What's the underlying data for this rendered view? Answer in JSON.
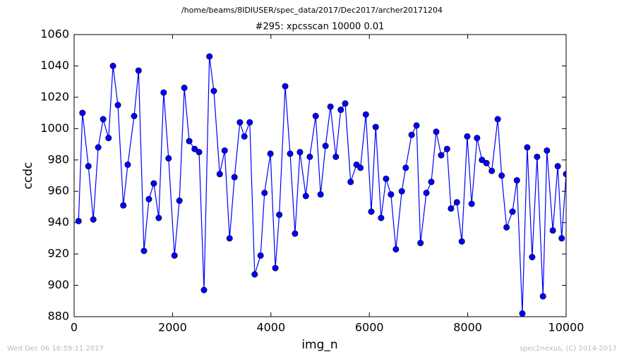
{
  "chart_data": {
    "type": "line",
    "suptitle": "/home/beams/8IDIUSER/spec_data/2017/Dec2017/archer20171204",
    "title": "#295: xpcsscan 10000 0.01",
    "xlabel": "img_n",
    "ylabel": "ccdc",
    "annotations": [
      "Wed Dec 06 16:59:11 2017",
      "spec2nexus, (C) 2014-2017"
    ],
    "x": [
      90,
      170,
      290,
      390,
      490,
      590,
      700,
      790,
      890,
      1000,
      1090,
      1220,
      1310,
      1420,
      1520,
      1620,
      1720,
      1820,
      1920,
      2040,
      2140,
      2240,
      2340,
      2450,
      2540,
      2640,
      2750,
      2840,
      2960,
      3060,
      3160,
      3260,
      3370,
      3460,
      3570,
      3670,
      3790,
      3870,
      3990,
      4090,
      4170,
      4290,
      4390,
      4490,
      4590,
      4710,
      4790,
      4910,
      5010,
      5110,
      5210,
      5320,
      5420,
      5510,
      5620,
      5740,
      5820,
      5930,
      6040,
      6130,
      6240,
      6340,
      6440,
      6540,
      6660,
      6740,
      6860,
      6960,
      7040,
      7160,
      7260,
      7360,
      7460,
      7580,
      7660,
      7780,
      7880,
      7990,
      8080,
      8190,
      8290,
      8380,
      8490,
      8610,
      8690,
      8790,
      8910,
      9000,
      9110,
      9210,
      9310,
      9410,
      9530,
      9610,
      9730,
      9830,
      9910,
      10000
    ],
    "series": [
      {
        "name": "ccdc",
        "color": "#0000ff",
        "values": [
          941,
          1010,
          976,
          942,
          988,
          1006,
          994,
          1040,
          1015,
          951,
          977,
          1008,
          1037,
          922,
          955,
          965,
          943,
          1023,
          981,
          919,
          954,
          1026,
          992,
          987,
          985,
          897,
          1046,
          1024,
          971,
          986,
          930,
          969,
          1004,
          995,
          1004,
          907,
          919,
          959,
          984,
          911,
          945,
          1027,
          984,
          933,
          985,
          957,
          982,
          1008,
          958,
          989,
          1014,
          982,
          1012,
          1016,
          966,
          977,
          975,
          1009,
          947,
          1001,
          943,
          968,
          958,
          923,
          960,
          975,
          996,
          1002,
          927,
          959,
          966,
          998,
          983,
          987,
          949,
          953,
          928,
          995,
          952,
          994,
          980,
          978,
          973,
          1006,
          970,
          937,
          947,
          967,
          882,
          988,
          918,
          982,
          893,
          986,
          935,
          976,
          930,
          971
        ]
      }
    ],
    "xlim": [
      0,
      10000
    ],
    "xticks": [
      0,
      2000,
      4000,
      6000,
      8000,
      10000
    ],
    "ylim": [
      880,
      1060
    ],
    "yticks": [
      880,
      900,
      920,
      940,
      960,
      980,
      1000,
      1020,
      1040,
      1060
    ],
    "grid": false
  }
}
